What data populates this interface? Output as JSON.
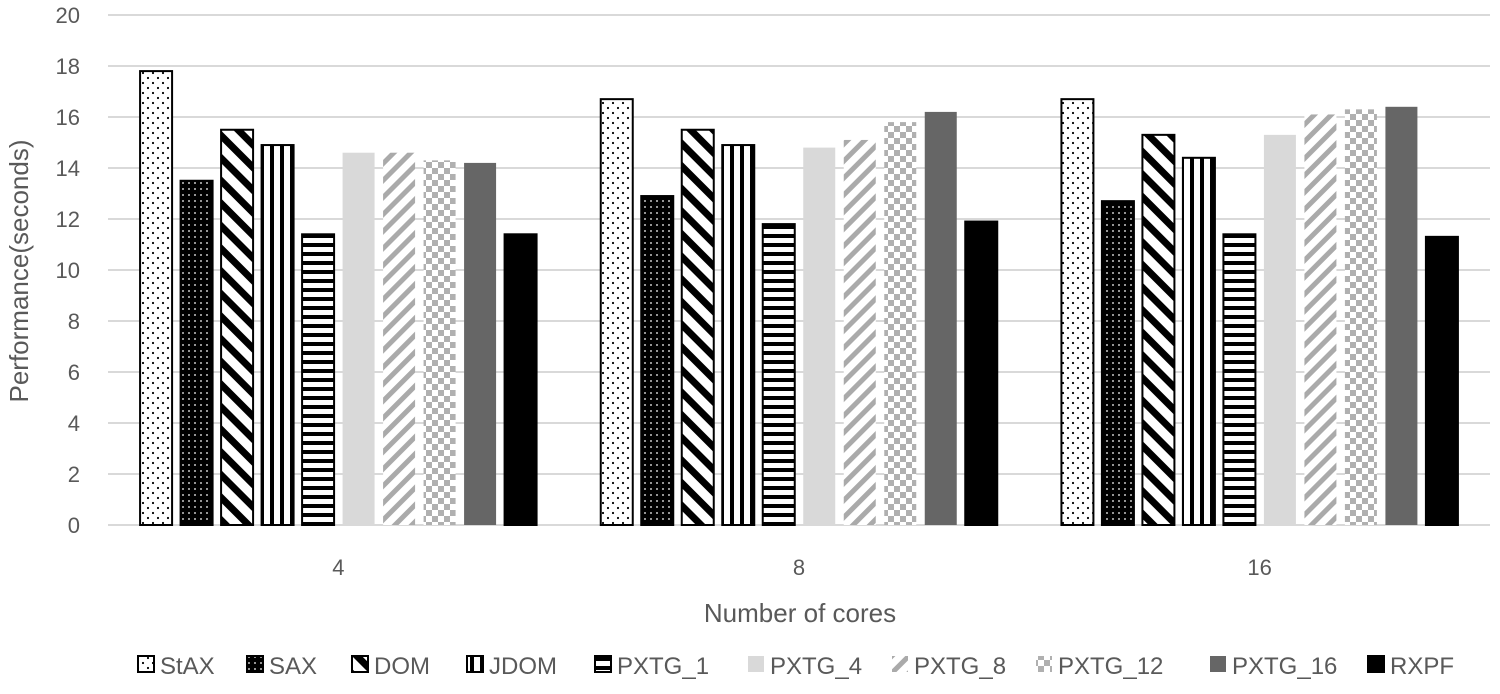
{
  "chart_data": {
    "type": "bar",
    "title": "",
    "xlabel": "Number of cores",
    "ylabel": "Performance(seconds)",
    "ylim": [
      0,
      20
    ],
    "ytick_step": 2,
    "grid": true,
    "legend_position": "bottom",
    "categories": [
      "4",
      "8",
      "16"
    ],
    "series": [
      {
        "name": "StAX",
        "pattern": "dots",
        "values": [
          17.8,
          16.7,
          16.7
        ]
      },
      {
        "name": "SAX",
        "pattern": "dense-dots",
        "values": [
          13.5,
          12.9,
          12.7
        ]
      },
      {
        "name": "DOM",
        "pattern": "wide-diag",
        "values": [
          15.5,
          15.5,
          15.3
        ]
      },
      {
        "name": "JDOM",
        "pattern": "vertical",
        "values": [
          14.9,
          14.9,
          14.4
        ]
      },
      {
        "name": "PXTG_1",
        "pattern": "horizontal",
        "values": [
          11.4,
          11.8,
          11.4
        ]
      },
      {
        "name": "PXTG_4",
        "pattern": "light-solid",
        "values": [
          14.6,
          14.8,
          15.3
        ]
      },
      {
        "name": "PXTG_8",
        "pattern": "light-diag",
        "values": [
          14.6,
          15.1,
          16.1
        ]
      },
      {
        "name": "PXTG_12",
        "pattern": "checker",
        "values": [
          14.3,
          15.8,
          16.3
        ]
      },
      {
        "name": "PXTG_16",
        "pattern": "dark-solid",
        "values": [
          14.2,
          16.2,
          16.4
        ]
      },
      {
        "name": "RXPF",
        "pattern": "black-solid",
        "values": [
          11.4,
          11.9,
          11.3
        ]
      }
    ]
  }
}
